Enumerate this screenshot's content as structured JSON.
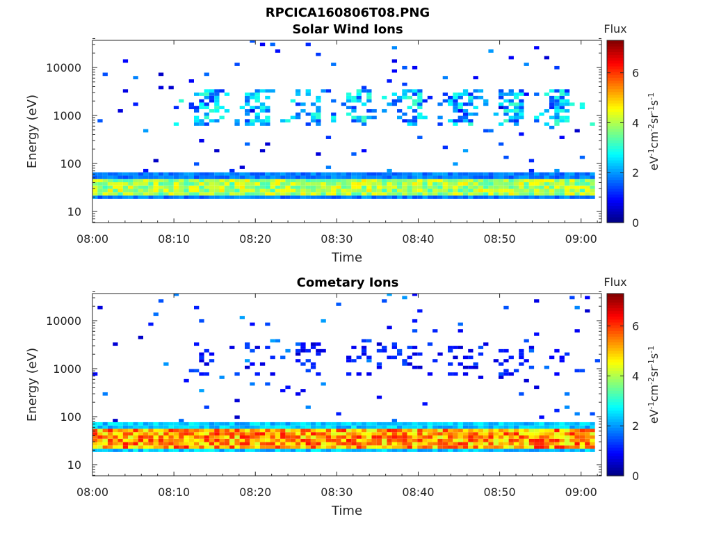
{
  "figure": {
    "title": "RPCICA160806T08.PNG"
  },
  "chart_data": [
    {
      "type": "heatmap",
      "title": "Solar Wind Ions",
      "xlabel": "Time",
      "ylabel": "Energy (eV)",
      "x_ticks": [
        "08:00",
        "08:10",
        "08:20",
        "08:30",
        "08:40",
        "08:50",
        "09:00"
      ],
      "y_ticks": [
        "10",
        "100",
        "1000",
        "10000"
      ],
      "y_scale": "log",
      "ylim": [
        6,
        45000
      ],
      "xlim_minutes": [
        0,
        62.5
      ],
      "colorbar": {
        "label_top": "Flux",
        "label_side": "eV-1cm-2sr-1s-1",
        "ticks": [
          "0",
          "2",
          "4",
          "6"
        ],
        "range": [
          0,
          7.3
        ],
        "colormap": "jet"
      },
      "bands": [
        {
          "name": "low-energy band",
          "energy_range_eV": [
            25,
            45
          ],
          "peak_flux": 4.5,
          "time_range_minutes": [
            0,
            62
          ]
        },
        {
          "name": "solar wind band",
          "energy_range_eV": [
            600,
            3500
          ],
          "peak_flux": 3.2,
          "time_range_minutes": [
            10,
            62
          ]
        }
      ]
    },
    {
      "type": "heatmap",
      "title": "Cometary Ions",
      "xlabel": "Time",
      "ylabel": "Energy (eV)",
      "x_ticks": [
        "08:00",
        "08:10",
        "08:20",
        "08:30",
        "08:40",
        "08:50",
        "09:00"
      ],
      "y_ticks": [
        "10",
        "100",
        "1000",
        "10000"
      ],
      "y_scale": "log",
      "ylim": [
        6,
        45000
      ],
      "xlim_minutes": [
        0,
        62.5
      ],
      "colorbar": {
        "label_top": "Flux",
        "label_side": "eV-1cm-2sr-1s-1",
        "ticks": [
          "0",
          "2",
          "4",
          "6"
        ],
        "range": [
          0,
          7.3
        ],
        "colormap": "jet"
      },
      "bands": [
        {
          "name": "low-energy band",
          "energy_range_eV": [
            25,
            50
          ],
          "peak_flux": 6.0,
          "time_range_minutes": [
            0,
            62
          ]
        },
        {
          "name": "sparse higher-energy band",
          "energy_range_eV": [
            700,
            3500
          ],
          "peak_flux": 1.5,
          "time_range_minutes": [
            12,
            60
          ]
        }
      ]
    }
  ]
}
